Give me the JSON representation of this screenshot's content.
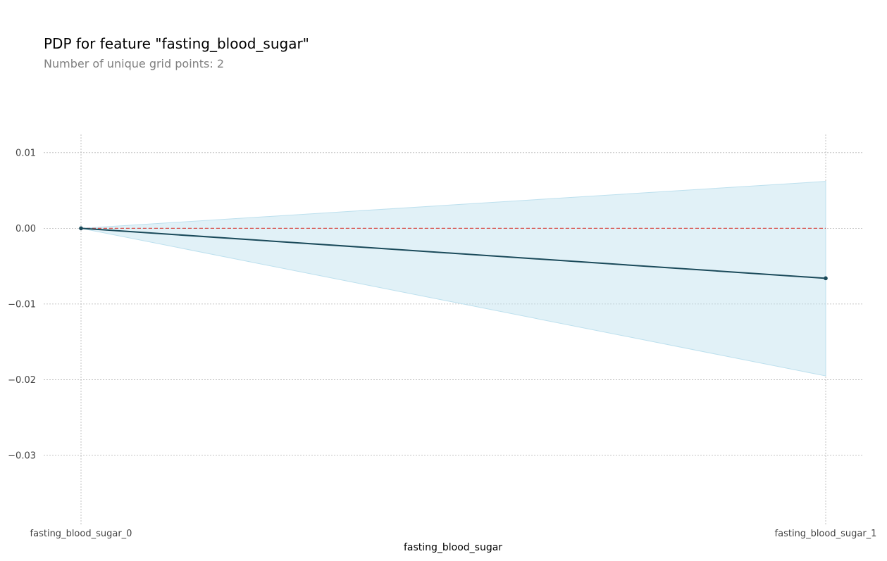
{
  "chart_data": {
    "type": "line",
    "title": "PDP for feature \"fasting_blood_sugar\"",
    "subtitle": "Number of unique grid points: 2",
    "xlabel": "fasting_blood_sugar",
    "ylabel": "",
    "categories": [
      "fasting_blood_sugar_0",
      "fasting_blood_sugar_1"
    ],
    "series": [
      {
        "values": [
          0.0,
          -0.0066
        ],
        "upper": [
          0.0,
          0.0062
        ],
        "lower": [
          0.0,
          -0.0195
        ]
      }
    ],
    "reference_line": 0.0,
    "yticks": [
      0.01,
      0.0,
      -0.01,
      -0.02,
      -0.03
    ],
    "ytick_labels": [
      "0.01",
      "0.00",
      "−0.01",
      "−0.02",
      "−0.03"
    ],
    "ylim": [
      -0.0393,
      0.0124
    ],
    "grid": true,
    "colors": {
      "line": "#1a4a5a",
      "fill": "#bde0ee",
      "reference": "#d9534f",
      "grid": "#b5b5b5"
    }
  }
}
